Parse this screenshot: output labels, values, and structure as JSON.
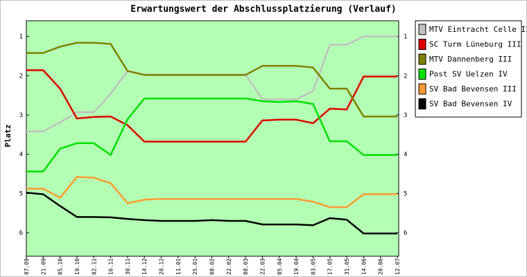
{
  "chart_data": {
    "type": "line",
    "title": "Erwartungswert der Abschlussplatzierung (Verlauf)",
    "y_label": "Platz",
    "categories": [
      "07.09",
      "21.09",
      "05.10",
      "19.10",
      "02.11",
      "16.11",
      "30.11",
      "14.12",
      "28.12",
      "11.01",
      "25.01",
      "08.02",
      "22.02",
      "08.03",
      "22.03",
      "05.04",
      "19.04",
      "03.05",
      "17.05",
      "31.05",
      "14.06",
      "28.06",
      "12.07"
    ],
    "series": [
      {
        "name": "MTV Eintracht Celle II",
        "color": "#c0c0c0",
        "values": [
          3.42,
          3.42,
          3.19,
          2.93,
          2.93,
          2.46,
          1.88,
          1.97,
          1.97,
          1.97,
          1.97,
          1.97,
          1.97,
          1.97,
          2.6,
          2.6,
          2.6,
          2.39,
          1.21,
          1.21,
          1.0,
          1.0,
          1.0
        ]
      },
      {
        "name": "SC Turm Lüneburg III",
        "color": "#e00000",
        "values": [
          1.86,
          1.86,
          2.33,
          3.09,
          3.05,
          3.04,
          3.26,
          3.68,
          3.68,
          3.68,
          3.68,
          3.68,
          3.68,
          3.68,
          3.14,
          3.12,
          3.12,
          3.21,
          2.84,
          2.86,
          2.02,
          2.02,
          2.02
        ]
      },
      {
        "name": "MTV Dannenberg III",
        "color": "#808000",
        "values": [
          1.42,
          1.42,
          1.26,
          1.16,
          1.16,
          1.19,
          1.88,
          1.98,
          1.98,
          1.98,
          1.98,
          1.98,
          1.98,
          1.98,
          1.75,
          1.75,
          1.75,
          1.79,
          2.33,
          2.33,
          3.04,
          3.04,
          3.04
        ]
      },
      {
        "name": "Post SV Uelzen IV",
        "color": "#00e000",
        "values": [
          4.44,
          4.44,
          3.86,
          3.72,
          3.72,
          4.02,
          3.11,
          2.58,
          2.58,
          2.58,
          2.58,
          2.58,
          2.58,
          2.58,
          2.65,
          2.67,
          2.65,
          2.72,
          3.67,
          3.67,
          4.02,
          4.02,
          4.02
        ]
      },
      {
        "name": "SV Bad Bevensen III",
        "color": "#ff9933",
        "values": [
          4.88,
          4.88,
          5.11,
          4.58,
          4.6,
          4.74,
          5.25,
          5.16,
          5.14,
          5.14,
          5.14,
          5.14,
          5.14,
          5.14,
          5.14,
          5.14,
          5.14,
          5.21,
          5.35,
          5.35,
          5.02,
          5.02,
          5.02
        ]
      },
      {
        "name": "SV Bad Bevensen IV",
        "color": "#000000",
        "values": [
          4.98,
          5.02,
          5.32,
          5.6,
          5.6,
          5.61,
          5.65,
          5.68,
          5.7,
          5.7,
          5.7,
          5.68,
          5.7,
          5.7,
          5.79,
          5.79,
          5.79,
          5.81,
          5.63,
          5.67,
          6.02,
          6.02,
          6.02
        ]
      }
    ],
    "ylim": [
      6.6,
      0.6
    ],
    "yticks": [
      1,
      2,
      3,
      4,
      5,
      6
    ],
    "plot_background": "#b3ffb3",
    "legend": "right"
  }
}
